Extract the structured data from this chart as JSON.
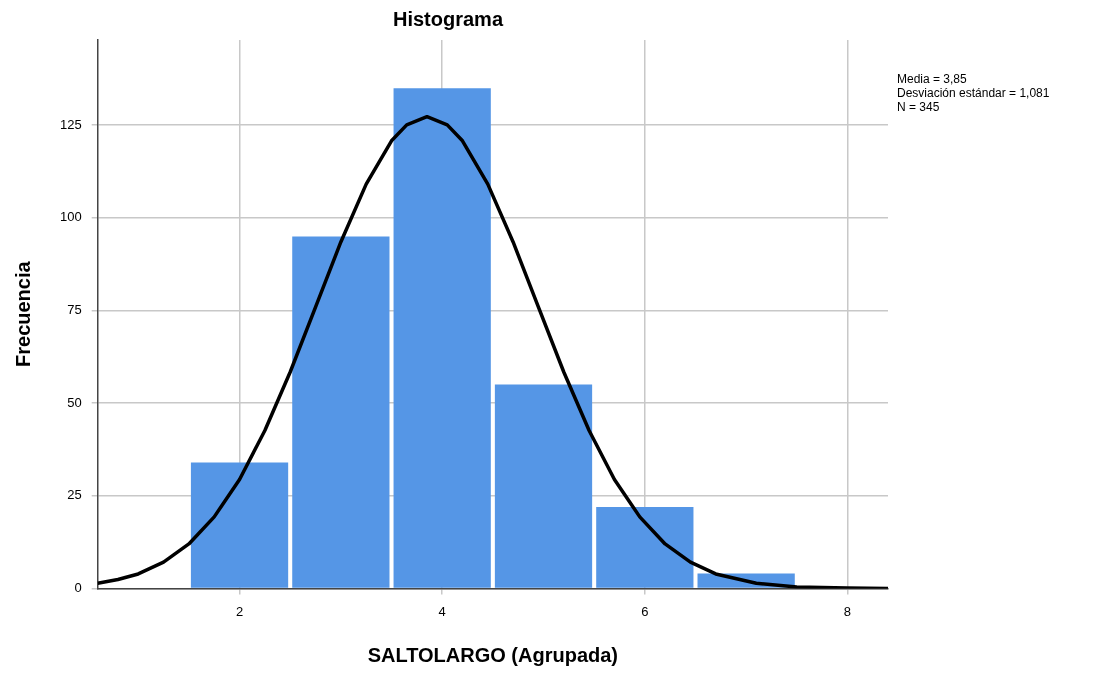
{
  "chart_data": {
    "type": "histogram",
    "title": "Histograma",
    "xlabel": "SALTOLARGO (Agrupada)",
    "ylabel": "Frecuencia",
    "bins": [
      1.5,
      2.5,
      3.5,
      4.5,
      5.5,
      6.5,
      7.5
    ],
    "series": [
      {
        "color": "#5596e6",
        "values": [
          34,
          95,
          135,
          55,
          22,
          4
        ]
      },
      {
        "type": "line",
        "color": "#000000",
        "x": [
          0.6,
          0.8,
          1.0,
          1.25,
          1.5,
          1.75,
          2.0,
          2.25,
          2.5,
          2.75,
          3.0,
          3.25,
          3.5,
          3.65,
          3.85,
          4.05,
          4.2,
          4.45,
          4.7,
          4.95,
          5.2,
          5.45,
          5.7,
          5.95,
          6.2,
          6.45,
          6.7,
          7.1,
          7.5,
          8.0,
          8.4
        ],
        "values": [
          1.4,
          2.4,
          3.9,
          7.1,
          12.0,
          19.3,
          29.4,
          42.6,
          58.4,
          75.9,
          93.5,
          109.1,
          120.8,
          125.1,
          127.3,
          125.1,
          120.8,
          109.1,
          93.5,
          75.9,
          58.4,
          42.6,
          29.4,
          19.3,
          12.0,
          7.1,
          3.9,
          1.4,
          0.4,
          0.1,
          0.0
        ]
      }
    ],
    "xlim": [
      0.6,
      8.4
    ],
    "xticks": [
      2,
      4,
      6,
      8
    ],
    "ylim": [
      0,
      148
    ],
    "yticks": [
      0,
      25,
      50,
      75,
      100,
      125
    ],
    "grid": true,
    "legend": false,
    "marker": "none",
    "line_style": "solid",
    "annotations": [
      "Media = 3,85",
      "Desviación estándar = 1,081",
      "N = 345"
    ]
  }
}
